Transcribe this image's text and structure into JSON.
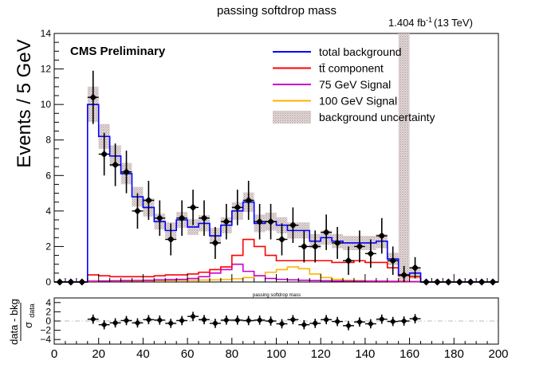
{
  "chart_data": [
    {
      "type": "histogram",
      "title": "passing softdrop mass",
      "lumi_label": "1.404 fb",
      "lumi_sup": "-1",
      "lumi_energy": "(13 TeV)",
      "experiment_label": "CMS Preliminary",
      "ylabel": "Events / 5 GeV",
      "xlim": [
        0,
        200
      ],
      "ylim": [
        0,
        14
      ],
      "x_ticks": [
        "0",
        "20",
        "40",
        "60",
        "80",
        "100",
        "120",
        "140",
        "160",
        "180",
        "200"
      ],
      "y_ticks": [
        "0",
        "2",
        "4",
        "6",
        "8",
        "10",
        "12",
        "14"
      ],
      "bin_width": 5,
      "bin_low_edges": [
        0,
        5,
        10,
        15,
        20,
        25,
        30,
        35,
        40,
        45,
        50,
        55,
        60,
        65,
        70,
        75,
        80,
        85,
        90,
        95,
        100,
        105,
        110,
        115,
        120,
        125,
        130,
        135,
        140,
        145,
        150,
        155,
        160,
        165,
        170,
        175,
        180,
        185,
        190,
        195
      ],
      "legend": [
        {
          "label": "total background",
          "color": "#0000ff"
        },
        {
          "label": "tt̄ component",
          "color": "#ff0000"
        },
        {
          "label": "75 GeV Signal",
          "color": "#cc00cc"
        },
        {
          "label": "100 GeV Signal",
          "color": "#ffb300"
        },
        {
          "label": "background uncertainty",
          "color": "#bbaaaa"
        }
      ],
      "series": [
        {
          "name": "total background",
          "color": "#0000ff",
          "values": [
            0,
            0,
            0,
            10.0,
            8.2,
            7.1,
            6.1,
            4.8,
            4.2,
            3.4,
            2.9,
            3.5,
            3.1,
            3.3,
            2.6,
            3.2,
            4.0,
            4.5,
            3.3,
            3.4,
            3.2,
            2.9,
            2.9,
            2.3,
            2.5,
            2.3,
            2.2,
            2.2,
            2.2,
            2.3,
            1.3,
            0.4,
            0.5,
            0,
            0,
            0,
            0,
            0,
            0,
            0
          ]
        },
        {
          "name": "tt̄ component",
          "color": "#ff0000",
          "values": [
            0,
            0,
            0,
            0.4,
            0.35,
            0.3,
            0.3,
            0.3,
            0.3,
            0.35,
            0.4,
            0.4,
            0.45,
            0.55,
            0.7,
            0.85,
            1.5,
            2.4,
            2.0,
            1.5,
            1.2,
            1.2,
            1.2,
            1.2,
            1.2,
            1.1,
            1.1,
            1.2,
            1.1,
            1.1,
            0.8,
            0.35,
            0.3,
            0,
            0,
            0,
            0,
            0,
            0,
            0
          ]
        },
        {
          "name": "75 GeV Signal",
          "color": "#cc00cc",
          "values": [
            0,
            0,
            0,
            0.05,
            0.06,
            0.07,
            0.08,
            0.09,
            0.1,
            0.12,
            0.13,
            0.15,
            0.2,
            0.3,
            0.5,
            0.7,
            1.0,
            0.6,
            0.35,
            0.2,
            0.15,
            0.12,
            0.1,
            0.08,
            0.07,
            0.06,
            0.05,
            0.05,
            0.04,
            0.04,
            0.03,
            0.02,
            0.02,
            0,
            0,
            0,
            0,
            0,
            0,
            0
          ]
        },
        {
          "name": "100 GeV Signal",
          "color": "#ffb300",
          "values": [
            0,
            0,
            0,
            0.04,
            0.05,
            0.05,
            0.06,
            0.06,
            0.07,
            0.08,
            0.08,
            0.09,
            0.1,
            0.11,
            0.12,
            0.14,
            0.18,
            0.25,
            0.35,
            0.55,
            0.7,
            0.85,
            0.75,
            0.45,
            0.25,
            0.15,
            0.1,
            0.08,
            0.06,
            0.05,
            0.05,
            0.04,
            0.03,
            0,
            0,
            0,
            0,
            0,
            0,
            0
          ]
        }
      ],
      "uncertainty": [
        0,
        0,
        0,
        1.0,
        0.7,
        0.6,
        0.6,
        0.55,
        0.5,
        0.45,
        0.45,
        0.45,
        0.45,
        0.45,
        0.45,
        0.45,
        0.5,
        0.55,
        0.5,
        0.5,
        0.45,
        0.45,
        0.45,
        0.4,
        0.4,
        0.4,
        0.4,
        0.4,
        0.4,
        0.4,
        0.35,
        14,
        0.3,
        0,
        0,
        0,
        0,
        0,
        0,
        0
      ],
      "data": {
        "name": "data",
        "x": [
          2.5,
          7.5,
          12.5,
          17.5,
          22.5,
          27.5,
          32.5,
          37.5,
          42.5,
          47.5,
          52.5,
          57.5,
          62.5,
          67.5,
          72.5,
          77.5,
          82.5,
          87.5,
          92.5,
          97.5,
          102.5,
          107.5,
          112.5,
          117.5,
          122.5,
          127.5,
          132.5,
          137.5,
          142.5,
          147.5,
          152.5,
          157.5,
          162.5,
          167.5,
          172.5,
          177.5,
          182.5,
          187.5,
          192.5,
          197.5
        ],
        "y": [
          0,
          0,
          0,
          10.4,
          7.2,
          6.6,
          6.2,
          4.0,
          4.6,
          3.6,
          2.4,
          3.6,
          4.2,
          3.6,
          2.2,
          3.4,
          4.2,
          4.6,
          3.4,
          3.4,
          2.4,
          3.2,
          2.0,
          2.0,
          2.8,
          2.2,
          1.2,
          2.0,
          1.6,
          2.6,
          1.2,
          0.4,
          0.8,
          0,
          0,
          0,
          0,
          0,
          0,
          0
        ],
        "err": [
          0,
          0,
          0,
          1.5,
          1.2,
          1.2,
          1.2,
          1.0,
          1.1,
          1.0,
          0.9,
          1.0,
          1.0,
          1.0,
          0.9,
          1.0,
          1.0,
          1.1,
          1.0,
          1.0,
          0.9,
          1.0,
          0.9,
          0.9,
          1.0,
          0.9,
          0.8,
          0.9,
          0.8,
          1.0,
          0.8,
          0.5,
          0.6,
          0,
          0,
          0,
          0,
          0,
          0,
          0
        ]
      }
    },
    {
      "type": "scatter",
      "title": "passing softdrop mass",
      "ylabel_top": "data - bkg",
      "ylabel_bottom": "σ",
      "ylabel_sub": "data",
      "xlim": [
        0,
        200
      ],
      "ylim": [
        -5,
        5
      ],
      "x_ticks": [
        "0",
        "20",
        "40",
        "60",
        "80",
        "100",
        "120",
        "140",
        "160",
        "180",
        "200"
      ],
      "y_ticks": [
        "−4",
        "−2",
        "0",
        "2",
        "4"
      ],
      "x": [
        17.5,
        22.5,
        27.5,
        32.5,
        37.5,
        42.5,
        47.5,
        52.5,
        57.5,
        62.5,
        67.5,
        72.5,
        77.5,
        82.5,
        87.5,
        92.5,
        97.5,
        102.5,
        107.5,
        112.5,
        117.5,
        122.5,
        127.5,
        132.5,
        137.5,
        142.5,
        147.5,
        152.5,
        157.5,
        162.5
      ],
      "y": [
        0.4,
        -0.8,
        -0.4,
        0.1,
        -0.4,
        0.3,
        0.2,
        -0.5,
        0.1,
        1.0,
        0.3,
        -0.5,
        0.2,
        0.2,
        0.1,
        0.2,
        0.0,
        -0.6,
        0.3,
        -0.8,
        -0.5,
        0.3,
        -0.1,
        -1.0,
        -0.2,
        -0.6,
        0.4,
        -0.1,
        0.0,
        0.5
      ]
    }
  ]
}
